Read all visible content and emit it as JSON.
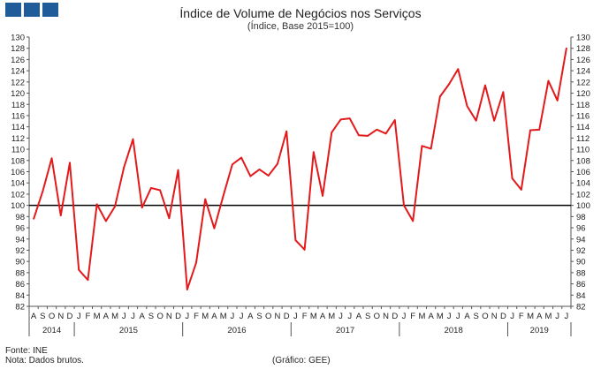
{
  "logo": {
    "icon": "ine-logo-blocks",
    "color": "#1f5c99"
  },
  "chart_data": {
    "type": "line",
    "title": "Índice de Volume de Negócios nos Serviços",
    "subtitle": "(Índice, Base 2015=100)",
    "ylim": [
      82,
      130
    ],
    "ytick_step": 2,
    "y_axes": [
      "left",
      "right"
    ],
    "grid": false,
    "reference_line": 100,
    "months": [
      "A",
      "S",
      "O",
      "N",
      "D",
      "J",
      "F",
      "M",
      "A",
      "M",
      "J",
      "J",
      "A",
      "S",
      "O",
      "N",
      "D",
      "J",
      "F",
      "M",
      "A",
      "M",
      "J",
      "J",
      "A",
      "S",
      "O",
      "N",
      "D",
      "J",
      "F",
      "M",
      "A",
      "M",
      "J",
      "J",
      "A",
      "S",
      "O",
      "N",
      "D",
      "J",
      "F",
      "M",
      "A",
      "M",
      "J",
      "J",
      "A",
      "S",
      "O",
      "N",
      "D",
      "J",
      "F",
      "M",
      "A",
      "M",
      "J",
      "J"
    ],
    "years": [
      {
        "label": "2014",
        "months": 5
      },
      {
        "label": "2015",
        "months": 12
      },
      {
        "label": "2016",
        "months": 12
      },
      {
        "label": "2017",
        "months": 12
      },
      {
        "label": "2018",
        "months": 12
      },
      {
        "label": "2019",
        "months": 7
      }
    ],
    "series": [
      {
        "color": "#e31a1c",
        "values": [
          97.6,
          102.5,
          108.4,
          98.2,
          107.6,
          88.5,
          86.7,
          100.2,
          97.2,
          99.8,
          106.8,
          111.8,
          99.6,
          103.1,
          102.7,
          97.7,
          106.3,
          85.0,
          89.8,
          101.1,
          95.9,
          101.7,
          107.3,
          108.5,
          105.2,
          106.4,
          105.3,
          107.4,
          113.2,
          93.8,
          92.1,
          109.5,
          101.7,
          113.0,
          115.3,
          115.5,
          112.5,
          112.4,
          113.5,
          112.8,
          115.2,
          100.0,
          97.2,
          110.6,
          110.1,
          119.4,
          121.6,
          124.3,
          117.7,
          115.1,
          121.4,
          115.1,
          120.2,
          104.8,
          102.8,
          113.4,
          113.5,
          122.2,
          118.7,
          128.0
        ]
      }
    ]
  },
  "footer": {
    "source": "Fonte:  INE",
    "note": "Nota: Dados brutos.",
    "credit": "(Gráfico:  GEE)"
  }
}
